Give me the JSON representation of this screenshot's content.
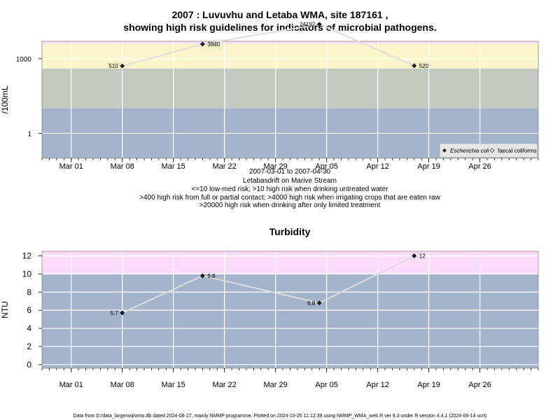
{
  "chart_data": [
    {
      "type": "line",
      "title": "2007 : Luvuvhu and Letaba WMA, site 187161 ,",
      "subtitle": "showing high risk guidelines for indicators of microbial pathogens.",
      "ylabel": "/100mL",
      "yscale": "log10",
      "ylim": [
        0.1,
        5000
      ],
      "yticks": [
        1,
        1000
      ],
      "xlim": [
        "2007-02-25",
        "2007-05-04"
      ],
      "xticks": [
        "Mar 01",
        "Mar 08",
        "Mar 15",
        "Mar 22",
        "Mar 29",
        "Apr 05",
        "Apr 12",
        "Apr 19",
        "Apr 26"
      ],
      "xtick_dates": [
        "2007-03-01",
        "2007-03-08",
        "2007-03-15",
        "2007-03-22",
        "2007-03-29",
        "2007-04-05",
        "2007-04-12",
        "2007-04-19",
        "2007-04-26"
      ],
      "bands": [
        {
          "from": 0.1,
          "to": 10,
          "color": "#a3b4cc"
        },
        {
          "from": 10,
          "to": 400,
          "color": "#c3cbc0"
        },
        {
          "from": 400,
          "to": 4000,
          "color": "#fbf4c8"
        },
        {
          "from": 4000,
          "to": 20000,
          "color": "#fadcfa"
        },
        {
          "from": 20000,
          "to": 50000,
          "color": "#fbb8c6"
        }
      ],
      "series": [
        {
          "name": "Escherichia coli",
          "x": [
            "2007-03-08",
            "2007-03-19",
            "2007-04-04",
            "2007-04-17"
          ],
          "y": [
            510,
            3840,
            24192,
            520
          ],
          "labels": [
            "510",
            "3840",
            "24192",
            "520"
          ]
        }
      ],
      "legend": {
        "position": "bottom-right",
        "items": [
          "Escherichia coli",
          "faecal coliforms"
        ]
      },
      "grid": true
    },
    {
      "type": "line",
      "title": "Turbidity",
      "ylabel": "NTU",
      "ylim": [
        -0.4,
        12.5
      ],
      "yticks": [
        0,
        2,
        4,
        6,
        8,
        10,
        12
      ],
      "xlim": [
        "2007-02-25",
        "2007-05-04"
      ],
      "xticks": [
        "Mar 01",
        "Mar 08",
        "Mar 15",
        "Mar 22",
        "Mar 29",
        "Apr 05",
        "Apr 12",
        "Apr 19",
        "Apr 26"
      ],
      "xtick_dates": [
        "2007-03-01",
        "2007-03-08",
        "2007-03-15",
        "2007-03-22",
        "2007-03-29",
        "2007-04-05",
        "2007-04-12",
        "2007-04-19",
        "2007-04-26"
      ],
      "bands": [
        {
          "from": -0.4,
          "to": 10,
          "color": "#a3b4cc"
        },
        {
          "from": 10,
          "to": 12.5,
          "color": "#fadcfa"
        }
      ],
      "series": [
        {
          "name": "",
          "x": [
            "2007-03-08",
            "2007-03-19",
            "2007-04-04",
            "2007-04-17"
          ],
          "y": [
            5.7,
            9.8,
            6.8,
            12
          ],
          "labels": [
            "5.7",
            "9.8",
            "6.8",
            "12"
          ]
        }
      ],
      "grid": true
    }
  ],
  "caption_lines": [
    "2007-03-01 to 2007-04-30",
    "Letabasdrift on Marive Stream",
    "<=10 low-med risk; >10 high risk when drinking untreated water",
    ">400 high risk from full or partial contact; >4000 high risk when irrigating crops that are eaten raw",
    ">20000 high risk when drinking after only limited treatment"
  ],
  "footer": "Data from D:/data_large/wq/wms.db dated 2024-08-27, mainly NMMP programme. Plotted on 2024-10-25 11:12:39 using NMMP_WMA_web.R ver 9.3 under R version 4.4.1 (2024-06-14 ucrt)"
}
